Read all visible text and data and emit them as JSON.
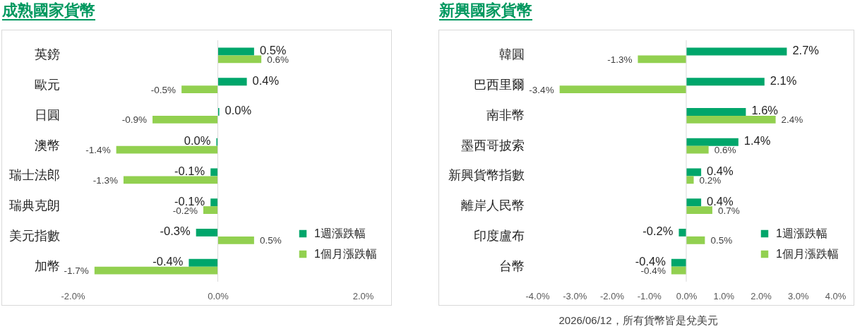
{
  "chart_data": [
    {
      "type": "bar",
      "orientation": "horizontal",
      "title": "成熟國家貨幣",
      "categories": [
        "英鎊",
        "歐元",
        "日圓",
        "澳幣",
        "瑞士法郎",
        "瑞典克朗",
        "美元指數",
        "加幣"
      ],
      "series": [
        {
          "name": "1週漲跌幅",
          "color": "#00a66b",
          "values": [
            0.5,
            0.4,
            0.02,
            -0.02,
            -0.1,
            -0.1,
            -0.3,
            -0.4
          ],
          "value_labels": [
            "0.5%",
            "0.4%",
            "0.0%",
            "0.0%",
            "-0.1%",
            "-0.1%",
            "-0.3%",
            "-0.4%"
          ]
        },
        {
          "name": "1個月漲跌幅",
          "color": "#92d050",
          "values": [
            0.6,
            -0.5,
            -0.9,
            -1.4,
            -1.3,
            -0.2,
            0.5,
            -1.7
          ],
          "value_labels": [
            "0.6%",
            "-0.5%",
            "-0.9%",
            "-1.4%",
            "-1.3%",
            "-0.2%",
            "0.5%",
            "-1.7%"
          ]
        }
      ],
      "xlim": [
        -2,
        2
      ],
      "xticks": [
        {
          "value": -2,
          "label": "-2.0%"
        },
        {
          "value": 0,
          "label": "0.0%"
        },
        {
          "value": 2,
          "label": "2.0%"
        }
      ],
      "ref_lines": [
        {
          "axis": "x",
          "value": 0,
          "color": "#d9d9d9"
        }
      ],
      "legend": "bottom right"
    },
    {
      "type": "bar",
      "orientation": "horizontal",
      "title": "新興國家貨幣",
      "categories": [
        "韓圓",
        "巴西里爾",
        "南非幣",
        "墨西哥披索",
        "新興貨幣指數",
        "離岸人民幣",
        "印度盧布",
        "台幣"
      ],
      "series": [
        {
          "name": "1週漲跌幅",
          "color": "#00a66b",
          "values": [
            2.7,
            2.1,
            1.6,
            1.4,
            0.4,
            0.4,
            -0.2,
            -0.4
          ],
          "value_labels": [
            "2.7%",
            "2.1%",
            "1.6%",
            "1.4%",
            "0.4%",
            "0.4%",
            "-0.2%",
            "-0.4%"
          ]
        },
        {
          "name": "1個月漲跌幅",
          "color": "#92d050",
          "values": [
            -1.3,
            -3.4,
            2.4,
            0.6,
            0.2,
            0.7,
            0.5,
            -0.4
          ],
          "value_labels": [
            "-1.3%",
            "-3.4%",
            "2.4%",
            "0.6%",
            "0.2%",
            "0.7%",
            "0.5%",
            "-0.4%"
          ]
        }
      ],
      "xlim": [
        -4,
        4
      ],
      "xticks": [
        {
          "value": -4,
          "label": "-4.0%"
        },
        {
          "value": -3,
          "label": "-3.0%"
        },
        {
          "value": -2,
          "label": "-2.0%"
        },
        {
          "value": -1,
          "label": "-1.0%"
        },
        {
          "value": 0,
          "label": "0.0%"
        },
        {
          "value": 1,
          "label": "1.0%"
        },
        {
          "value": 2,
          "label": "2.0%"
        },
        {
          "value": 3,
          "label": "3.0%"
        },
        {
          "value": 4,
          "label": "4.0%"
        }
      ],
      "ref_lines": [
        {
          "axis": "x",
          "value": 0,
          "color": "#d9d9d9"
        }
      ],
      "legend": "bottom right",
      "annotations": [
        "2026/06/12，所有貨幣皆是兌美元"
      ]
    }
  ]
}
